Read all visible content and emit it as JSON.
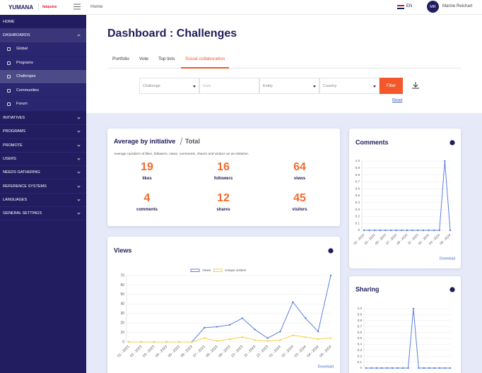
{
  "sidebar": {
    "logo": "YUMANA",
    "partner": "fabpulse",
    "menu_top": [
      "HOME",
      "DASHBOARDS"
    ],
    "submenu": [
      "Global",
      "Programs",
      "Challenges",
      "Communities",
      "Forum"
    ],
    "menu": [
      "INITIATIVES",
      "PROGRAMS",
      "PROMOTE",
      "USERS",
      "NEEDS GATHERING",
      "REFERENCE SYSTEMS",
      "LANGUAGES",
      "GENERAL SETTINGS"
    ]
  },
  "topbar": {
    "breadcrumb": "Home",
    "language": "EN",
    "avatar": "MR",
    "user": "Marine Reichart"
  },
  "page": {
    "title": "Dashboard : Challenges",
    "tabs": [
      "Portfolio",
      "Vote",
      "Top lists",
      "Social collaboration"
    ]
  },
  "filters": {
    "fields": [
      "Challenge",
      "Date",
      "Entity",
      "Country"
    ],
    "button": "Filter",
    "reset": "Reset"
  },
  "summary": {
    "title": "Average by initiative",
    "mode": "Total",
    "description": "Average numbers of likes, followers, views, comments, shares and visitors on an initiative.",
    "stats": [
      {
        "value": 19,
        "label": "likes"
      },
      {
        "value": 16,
        "label": "followers"
      },
      {
        "value": 64,
        "label": "views"
      },
      {
        "value": 4,
        "label": "comments"
      },
      {
        "value": 12,
        "label": "shares"
      },
      {
        "value": 45,
        "label": "visitors"
      }
    ]
  },
  "chart_data": [
    {
      "type": "line",
      "title": "Views",
      "download": "Download",
      "legend": "top",
      "grid": true,
      "categories": [
        "01 - 2023",
        "02 - 2023",
        "03 - 2023",
        "04 - 2023",
        "05 - 2023",
        "06 - 2023",
        "07 - 2023",
        "08 - 2023",
        "09 - 2023",
        "10 - 2023",
        "11 - 2023",
        "12 - 2023",
        "01 - 2024",
        "02 - 2024",
        "03 - 2024",
        "04 - 2024",
        "05 - 2024"
      ],
      "series": [
        {
          "name": "Views",
          "color": "#5b7fe0",
          "values": [
            0,
            0,
            0,
            0,
            0,
            0,
            15,
            16,
            18,
            25,
            13,
            4,
            11,
            42,
            25,
            11,
            70
          ]
        },
        {
          "name": "Unique visitors",
          "color": "#f2cf45",
          "values": [
            0,
            0,
            0,
            0,
            0,
            0,
            4,
            1,
            3,
            5,
            2,
            1,
            2,
            7,
            5,
            3,
            4
          ]
        }
      ],
      "ylim": [
        0,
        70
      ],
      "yticks": [
        0,
        10,
        20,
        30,
        40,
        50,
        60,
        70
      ]
    },
    {
      "type": "line",
      "title": "Comments",
      "download": "Download",
      "grid": true,
      "color": "#5b7fe0",
      "categories": [
        "01 - 2023",
        null,
        "03 - 2023",
        null,
        "05 - 2023",
        null,
        "07 - 2023",
        null,
        "09 - 2023",
        null,
        "11 - 2023",
        null,
        "01 - 2024",
        null,
        "03 - 2024",
        null,
        "05 - 2024"
      ],
      "values": [
        0,
        0,
        0,
        0,
        0,
        0,
        0,
        0,
        0,
        0,
        0,
        0,
        0,
        0,
        0,
        1,
        0
      ],
      "ylim": [
        0,
        1
      ],
      "yticks": [
        0,
        0.1,
        0.2,
        0.3,
        0.4,
        0.5,
        0.6,
        0.7,
        0.8,
        0.9,
        {
          "value": 1,
          "label": "1.0"
        }
      ]
    },
    {
      "type": "line",
      "title": "Sharing",
      "grid": true,
      "color": "#5b7fe0",
      "values": [
        0,
        0,
        0,
        0,
        0,
        0,
        0,
        0,
        0,
        1,
        0,
        0,
        0,
        0,
        0,
        0,
        0
      ],
      "ylim": [
        0,
        1
      ],
      "yticks": [
        0,
        0.1,
        0.2,
        0.3,
        0.4,
        0.5,
        0.6,
        0.7,
        0.8,
        0.9,
        {
          "value": 1,
          "label": "1.0"
        }
      ]
    }
  ]
}
